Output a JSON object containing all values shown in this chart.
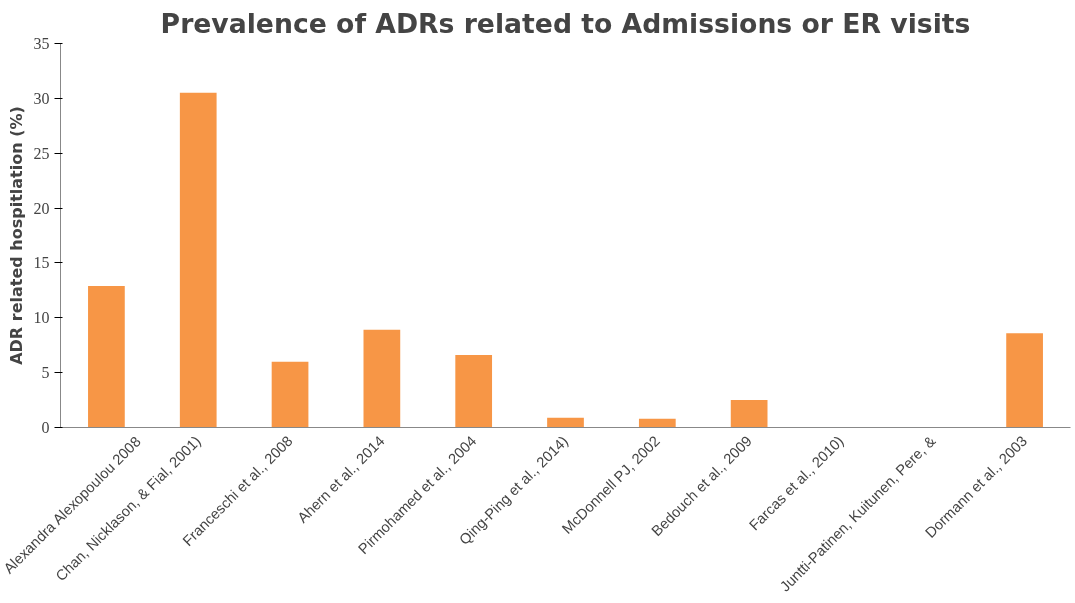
{
  "chart_data": {
    "type": "bar",
    "title": "Prevalence of ADRs related to Admissions or ER visits",
    "ylabel": "ADR related hospitlation (%)",
    "categories": [
      "Alexandra Alexopoulou 2008",
      "Chan, Nicklason, & Fial, 2001)",
      "Franceschi et al., 2008",
      "Ahern et al., 2014",
      "Pirmohamed et al., 2004",
      "Qing-Ping et al., 2014)",
      "McDonnell PJ, 2002",
      "Bedouch et al., 2009",
      "Farcas et al., 2010)",
      "Juntti-Patinen, Kuitunen, Pere, &",
      "Dormann et al., 2003"
    ],
    "values": [
      12.9,
      30.5,
      6.0,
      8.9,
      6.6,
      0.9,
      0.8,
      2.5,
      null,
      null,
      8.6
    ],
    "color": "#f79646",
    "ylim": [
      0,
      35
    ],
    "yticks": [
      0,
      5,
      10,
      15,
      20,
      25,
      30,
      35
    ],
    "grid": false
  }
}
